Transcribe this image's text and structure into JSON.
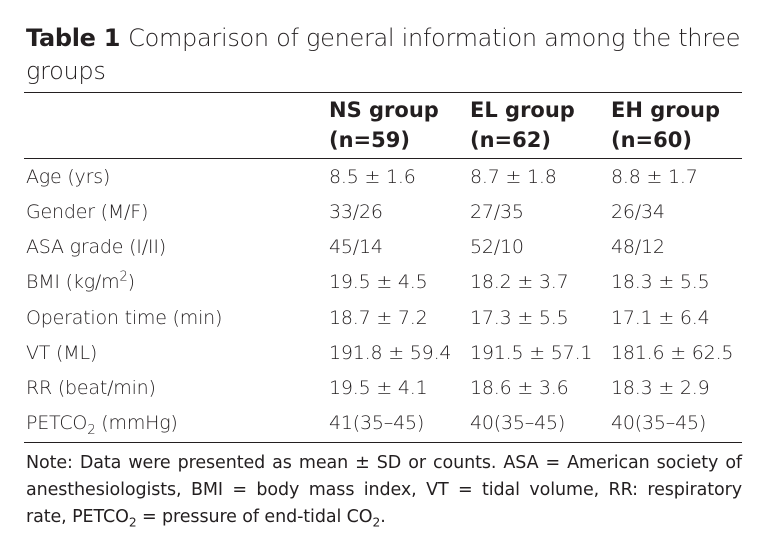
{
  "table": {
    "label": "Table 1",
    "title": "Comparison of general information among the three groups",
    "columns": [
      {
        "name": "NS group",
        "n": "(n=59)"
      },
      {
        "name": "EL group",
        "n": "(n=62)"
      },
      {
        "name": "EH group",
        "n": "(n=60)"
      }
    ],
    "rows": [
      {
        "label": "Age (yrs)",
        "values": [
          "8.5 ± 1.6",
          "8.7 ± 1.8",
          "8.8 ± 1.7"
        ]
      },
      {
        "label": "Gender (M/F)",
        "values": [
          "33/26",
          "27/35",
          "26/34"
        ]
      },
      {
        "label": "ASA grade (I/II)",
        "values": [
          "45/14",
          "52/10",
          "48/12"
        ]
      },
      {
        "label_pre": "BMI (kg/m",
        "label_sup": "2",
        "label_post": ")",
        "values": [
          "19.5 ± 4.5",
          "18.2 ± 3.7",
          "18.3 ± 5.5"
        ]
      },
      {
        "label": "Operation time (min)",
        "values": [
          "18.7 ± 7.2",
          "17.3 ± 5.5",
          "17.1 ± 6.4"
        ]
      },
      {
        "label": "VT (ML)",
        "values": [
          "191.8 ± 59.4",
          "191.5 ± 57.1",
          "181.6 ± 62.5"
        ]
      },
      {
        "label": "RR (beat/min)",
        "values": [
          "19.5 ± 4.1",
          "18.6 ± 3.6",
          "18.3 ± 2.9"
        ]
      },
      {
        "label_pre": "PETCO",
        "label_sub": "2",
        "label_post": " (mmHg)",
        "values": [
          "41(35–45)",
          "40(35–45)",
          "40(35–45)"
        ]
      }
    ],
    "note": {
      "part1": "Note: Data were presented as mean ± SD or counts. ASA = American society of anesthesiologists, BMI = body mass index, VT = tidal volume, RR: respiratory rate, PETCO",
      "sub1": "2",
      "part2": " = pressure of end-tidal CO",
      "sub2": "2",
      "part3": "."
    }
  }
}
